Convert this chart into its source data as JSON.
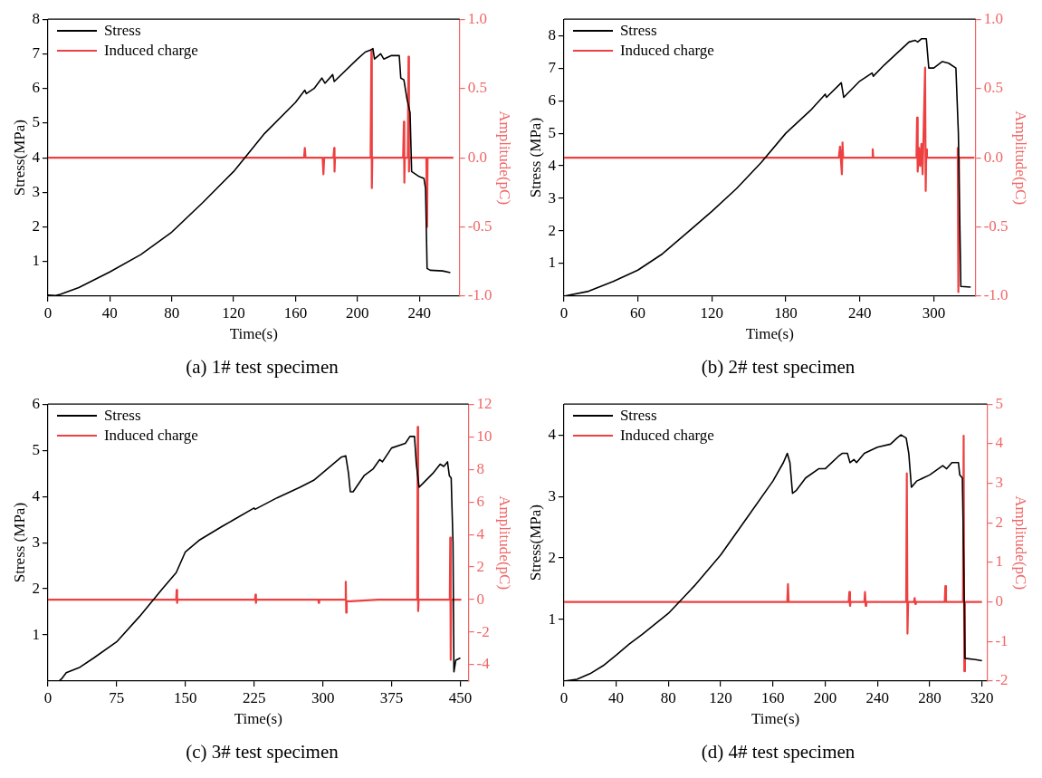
{
  "chart_data": [
    {
      "type": "line",
      "title": "(a) 1# test specimen",
      "xlabel": "Time(s)",
      "ylabel": "Stress(MPa)",
      "y2label": "Amplitude(pC)",
      "legend": "top left",
      "xlim": [
        0,
        266
      ],
      "xticks": [
        0,
        40,
        80,
        120,
        160,
        200,
        240
      ],
      "ylim": [
        0,
        8
      ],
      "yticks": [
        1,
        2,
        3,
        4,
        5,
        6,
        7,
        8
      ],
      "y2lim": [
        -1,
        1
      ],
      "y2ticks": [
        {
          "value": -1,
          "label": "-1.0"
        },
        {
          "value": -0.5,
          "label": "-0.5"
        },
        {
          "value": 0,
          "label": "0.0"
        },
        {
          "value": 0.5,
          "label": "0.5"
        },
        {
          "value": 1,
          "label": "1.0"
        }
      ],
      "series": [
        {
          "name": "Stress",
          "color": "#000000",
          "x": [
            0,
            5,
            8,
            20,
            40,
            60,
            80,
            100,
            120,
            140,
            160,
            166,
            167,
            172,
            177,
            179,
            184,
            185,
            200,
            205,
            208,
            210,
            211,
            215,
            217,
            222,
            227,
            228,
            230,
            232,
            234,
            235,
            240,
            243,
            244,
            245,
            247,
            255,
            260
          ],
          "values": [
            0.03,
            0.02,
            0.05,
            0.25,
            0.7,
            1.2,
            1.85,
            2.7,
            3.6,
            4.7,
            5.6,
            5.95,
            5.85,
            6.0,
            6.3,
            6.15,
            6.4,
            6.2,
            6.85,
            7.05,
            7.1,
            7.15,
            6.85,
            7.0,
            6.85,
            6.95,
            6.95,
            6.3,
            6.25,
            5.7,
            5.3,
            3.6,
            3.45,
            3.4,
            3.1,
            0.8,
            0.75,
            0.73,
            0.68
          ]
        },
        {
          "name": "Induced charge",
          "color": "#ee4040",
          "axis": "y2",
          "x": [
            0,
            165.5,
            166,
            166.5,
            177.5,
            178,
            178.5,
            184.5,
            185,
            185.2,
            185.5,
            208.5,
            209,
            209.3,
            209.6,
            229.5,
            230,
            230.3,
            230.6,
            232.5,
            233,
            233.3,
            233.6,
            244.5,
            245,
            245.3,
            262
          ],
          "values": [
            0,
            0,
            0.07,
            0,
            0,
            -0.12,
            0,
            0,
            0.07,
            -0.1,
            0,
            0,
            0.77,
            -0.22,
            0,
            0,
            0.26,
            -0.18,
            0,
            0,
            0.73,
            -0.1,
            0,
            0,
            -0.5,
            0,
            0
          ]
        }
      ]
    },
    {
      "type": "line",
      "title": "(b) 2# test specimen",
      "xlabel": "Time(s)",
      "ylabel": "Stress (MPa)",
      "y2label": "Amplitude(pC)",
      "legend": "top left",
      "xlim": [
        0,
        334
      ],
      "xticks": [
        0,
        60,
        120,
        180,
        240,
        300
      ],
      "ylim": [
        0,
        8.5
      ],
      "yticks": [
        1,
        2,
        3,
        4,
        5,
        6,
        7,
        8
      ],
      "y2lim": [
        -1,
        1
      ],
      "y2ticks": [
        {
          "value": -1,
          "label": "-1.0"
        },
        {
          "value": -0.5,
          "label": "-0.5"
        },
        {
          "value": 0,
          "label": "0.0"
        },
        {
          "value": 0.5,
          "label": "0.5"
        },
        {
          "value": 1,
          "label": "1.0"
        }
      ],
      "series": [
        {
          "name": "Stress",
          "color": "#000000",
          "x": [
            0,
            20,
            40,
            60,
            80,
            100,
            120,
            140,
            160,
            180,
            200,
            212,
            213,
            225,
            227,
            240,
            250,
            251,
            260,
            280,
            285,
            287,
            290,
            294,
            296,
            300,
            307,
            312,
            318,
            320,
            322,
            330
          ],
          "values": [
            0,
            0.15,
            0.45,
            0.8,
            1.3,
            1.95,
            2.6,
            3.3,
            4.1,
            5.0,
            5.7,
            6.2,
            6.1,
            6.55,
            6.1,
            6.6,
            6.85,
            6.75,
            7.1,
            7.8,
            7.85,
            7.8,
            7.9,
            7.9,
            7.0,
            7.0,
            7.2,
            7.15,
            7.0,
            5.0,
            0.3,
            0.28
          ]
        },
        {
          "name": "Induced charge",
          "color": "#ee4040",
          "axis": "y2",
          "x": [
            0,
            223,
            224,
            225.5,
            226,
            226.5,
            250,
            250.5,
            251,
            286,
            286.5,
            287,
            288,
            289,
            290,
            291,
            293,
            293.5,
            294,
            294.5,
            319,
            319.5,
            320,
            320.5,
            333
          ],
          "values": [
            0,
            0,
            0.08,
            -0.12,
            0.11,
            0,
            0,
            0.06,
            0,
            0,
            0.29,
            -0.1,
            0.07,
            -0.06,
            0.1,
            -0.12,
            0.65,
            -0.24,
            0.06,
            0,
            0,
            0.07,
            -0.97,
            0,
            0
          ]
        }
      ]
    },
    {
      "type": "line",
      "title": "(c) 3# test specimen",
      "xlabel": "Time(s)",
      "ylabel": "Stress (MPa)",
      "y2label": "Amplitude(pC)",
      "legend": "top left",
      "xlim": [
        0,
        459
      ],
      "xticks": [
        0,
        75,
        150,
        225,
        300,
        375,
        450
      ],
      "ylim": [
        0,
        6
      ],
      "yticks": [
        1,
        2,
        3,
        4,
        5,
        6
      ],
      "y2lim": [
        -5,
        12
      ],
      "y2ticks": [
        -4,
        -2,
        0,
        2,
        4,
        6,
        8,
        10,
        12
      ],
      "series": [
        {
          "name": "Stress",
          "color": "#000000",
          "x": [
            0,
            12,
            15,
            20,
            25,
            35,
            50,
            75,
            100,
            125,
            140,
            150,
            165,
            190,
            225,
            226,
            250,
            275,
            290,
            305,
            320,
            325,
            328,
            330,
            333,
            345,
            355,
            362,
            365,
            375,
            390,
            395,
            400,
            402,
            405,
            410,
            420,
            428,
            432,
            436,
            438,
            440,
            442,
            443,
            445,
            450
          ],
          "values": [
            0,
            0,
            0.05,
            0.18,
            0.22,
            0.3,
            0.5,
            0.85,
            1.4,
            2.0,
            2.35,
            2.8,
            3.05,
            3.35,
            3.75,
            3.72,
            3.97,
            4.2,
            4.35,
            4.6,
            4.85,
            4.88,
            4.5,
            4.1,
            4.1,
            4.45,
            4.6,
            4.8,
            4.75,
            5.05,
            5.15,
            5.3,
            5.3,
            4.7,
            4.2,
            4.3,
            4.5,
            4.7,
            4.65,
            4.75,
            4.45,
            4.4,
            3.0,
            0.2,
            0.45,
            0.5
          ]
        },
        {
          "name": "Induced charge",
          "color": "#ee4040",
          "axis": "y2",
          "x": [
            0,
            140,
            140.5,
            141,
            141.5,
            226,
            226.5,
            227,
            227.5,
            295,
            295.5,
            296,
            324.5,
            325,
            325.5,
            326,
            330,
            360,
            403,
            403.5,
            404,
            404.5,
            438.5,
            439,
            439.5,
            440,
            451
          ],
          "values": [
            0,
            0,
            0.6,
            -0.2,
            0,
            0,
            0.3,
            -0.2,
            0,
            0,
            -0.2,
            0,
            0,
            1.1,
            -0.8,
            -0.1,
            -0.1,
            0,
            0,
            10.6,
            -0.7,
            0,
            0,
            3.8,
            -3.7,
            0,
            0
          ]
        }
      ]
    },
    {
      "type": "line",
      "title": "(d) 4# test specimen",
      "xlabel": "Time(s)",
      "ylabel": "Stress(MPa)",
      "y2label": "Amplitude(pC)",
      "legend": "top left",
      "xlim": [
        0,
        324
      ],
      "xticks": [
        0,
        40,
        80,
        120,
        160,
        200,
        240,
        280,
        320
      ],
      "ylim": [
        0,
        4.5
      ],
      "yticks": [
        1,
        2,
        3,
        4
      ],
      "y2lim": [
        -2,
        5
      ],
      "y2ticks": [
        -2,
        -1,
        0,
        1,
        2,
        3,
        4,
        5
      ],
      "series": [
        {
          "name": "Stress",
          "color": "#000000",
          "x": [
            0,
            10,
            20,
            30,
            40,
            50,
            60,
            80,
            100,
            120,
            140,
            160,
            168,
            171,
            173,
            175,
            178,
            185,
            195,
            200,
            210,
            213,
            217,
            219,
            222,
            224,
            230,
            240,
            250,
            255,
            258,
            262,
            264,
            266,
            270,
            280,
            290,
            293,
            297,
            302,
            303,
            305,
            306,
            307,
            315,
            320
          ],
          "values": [
            0,
            0.03,
            0.12,
            0.25,
            0.42,
            0.6,
            0.76,
            1.1,
            1.55,
            2.05,
            2.65,
            3.25,
            3.55,
            3.7,
            3.55,
            3.05,
            3.1,
            3.3,
            3.45,
            3.45,
            3.65,
            3.7,
            3.7,
            3.55,
            3.6,
            3.55,
            3.7,
            3.8,
            3.85,
            3.95,
            4.0,
            3.95,
            3.7,
            3.15,
            3.25,
            3.35,
            3.5,
            3.45,
            3.55,
            3.55,
            3.35,
            3.3,
            2.0,
            0.37,
            0.35,
            0.33
          ]
        },
        {
          "name": "Induced charge",
          "color": "#ee4040",
          "axis": "y2",
          "x": [
            0,
            171,
            171.5,
            172,
            218,
            218.5,
            219,
            219.5,
            230,
            230.5,
            231,
            231.5,
            262,
            262.5,
            263,
            263.5,
            268,
            268.5,
            269,
            269.5,
            291.5,
            292,
            292.5,
            305.5,
            306,
            306.5,
            307,
            320
          ],
          "values": [
            0,
            0,
            0.45,
            0,
            0,
            0.25,
            -0.1,
            0,
            0,
            0.25,
            -0.1,
            0,
            0,
            3.25,
            -0.8,
            0,
            0,
            0.1,
            -0.05,
            0,
            0,
            0.4,
            0,
            0,
            4.2,
            -1.75,
            0,
            0
          ]
        }
      ]
    }
  ]
}
